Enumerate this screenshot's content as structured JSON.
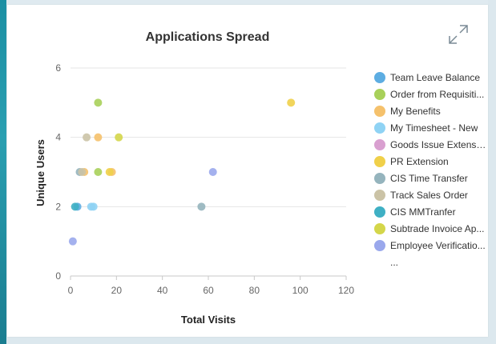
{
  "chart_data": {
    "type": "scatter",
    "title": "Applications Spread",
    "xlabel": "Total Visits",
    "ylabel": "Unique Users",
    "xlim": [
      0,
      120
    ],
    "ylim": [
      0,
      6
    ],
    "x_ticks": [
      "0",
      "20",
      "40",
      "60",
      "80",
      "100",
      "120"
    ],
    "y_ticks": [
      "0",
      "2",
      "4",
      "6"
    ],
    "grid": "horizontal",
    "legend_position": "right",
    "series": [
      {
        "name": "Team Leave Balance",
        "color": "#5dade2",
        "points": [
          [
            3,
            2
          ]
        ]
      },
      {
        "name": "Order from Requisiti...",
        "color": "#a8d05a",
        "points": [
          [
            12,
            5
          ],
          [
            12,
            3
          ]
        ]
      },
      {
        "name": "My Benefits",
        "color": "#f5c16c",
        "points": [
          [
            12,
            4
          ],
          [
            18,
            3
          ],
          [
            6,
            3
          ]
        ]
      },
      {
        "name": "My Timesheet - New",
        "color": "#8fd3f4",
        "points": [
          [
            10,
            2
          ],
          [
            9,
            2
          ]
        ]
      },
      {
        "name": "Goods Issue Extensi...",
        "color": "#d9a0d0",
        "points": []
      },
      {
        "name": "PR Extension",
        "color": "#f0d04a",
        "points": [
          [
            96,
            5
          ],
          [
            17,
            3
          ]
        ]
      },
      {
        "name": "CIS Time Transfer",
        "color": "#95b4bd",
        "points": [
          [
            57,
            2
          ],
          [
            4,
            3
          ]
        ]
      },
      {
        "name": "Track Sales Order",
        "color": "#cbc3a6",
        "points": [
          [
            7,
            4
          ],
          [
            5,
            3
          ]
        ]
      },
      {
        "name": "CIS MMTranfer",
        "color": "#3fb0c4",
        "points": [
          [
            2,
            2
          ]
        ]
      },
      {
        "name": "Subtrade Invoice Ap...",
        "color": "#d4d64a",
        "points": [
          [
            21,
            4
          ]
        ]
      },
      {
        "name": "Employee Verificatio...",
        "color": "#9aa8ec",
        "points": [
          [
            62,
            3
          ],
          [
            1,
            1
          ]
        ]
      }
    ]
  },
  "legend": {
    "more": "..."
  },
  "toolbar": {
    "expand_icon": "expand-icon"
  }
}
